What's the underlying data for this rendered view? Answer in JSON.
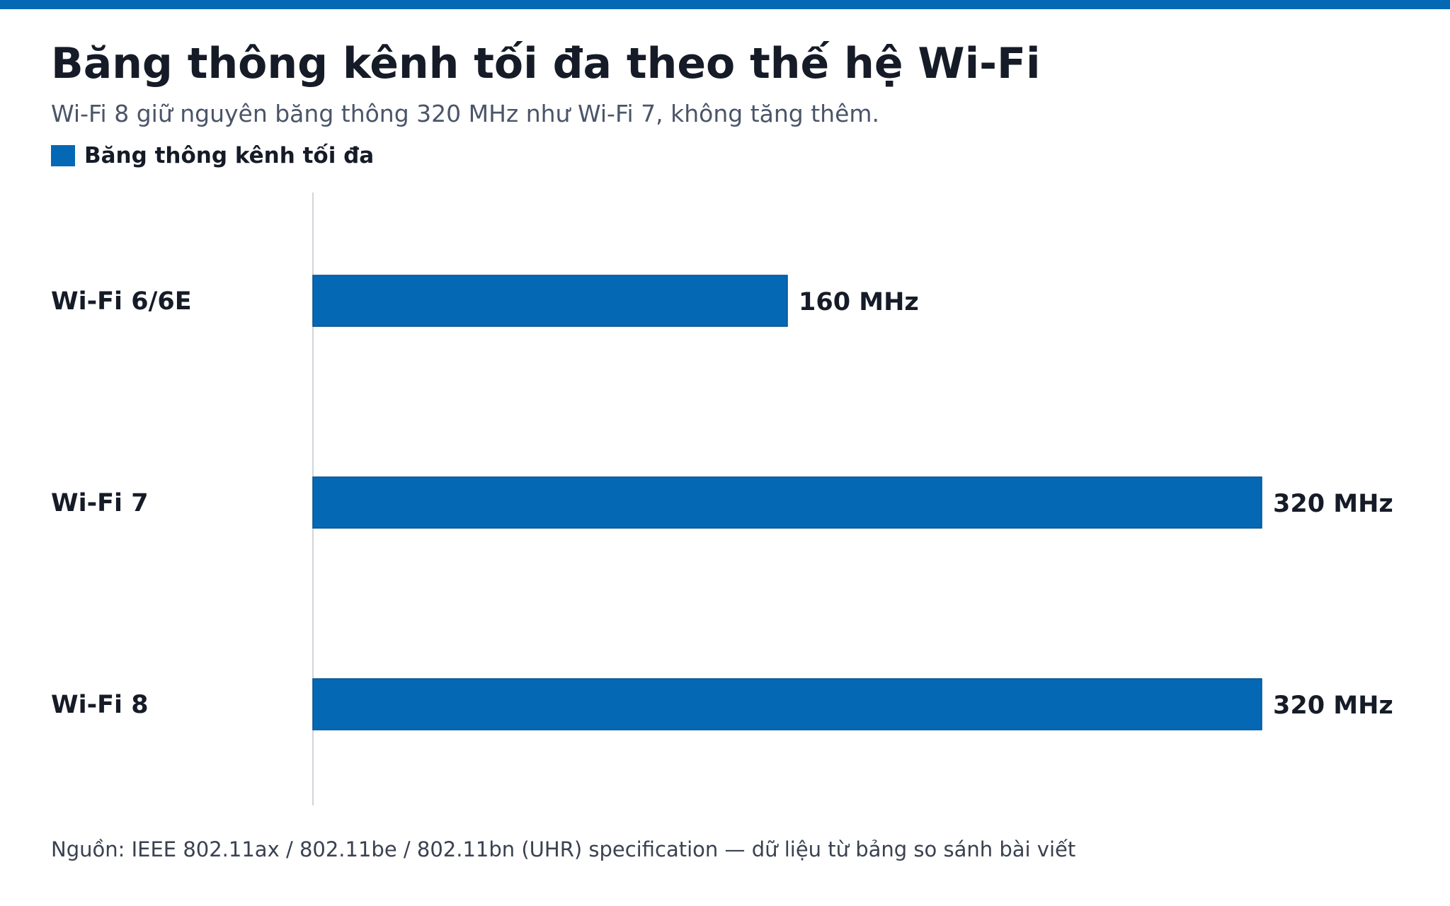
{
  "title": "Băng thông kênh tối đa theo thế hệ Wi-Fi",
  "subtitle": "Wi-Fi 8 giữ nguyên băng thông 320 MHz như Wi-Fi 7, không tăng thêm.",
  "source": "Nguồn: IEEE 802.11ax / 802.11be / 802.11bn (UHR) specification — dữ liệu từ bảng so sánh bài viết",
  "colors": {
    "accent": "#0568b5",
    "bar_stroke": "#04528f",
    "axis": "#d0d4da"
  },
  "chart_data": {
    "type": "bar",
    "orientation": "horizontal",
    "title": "Băng thông kênh tối đa theo thế hệ Wi-Fi",
    "subtitle": "Wi-Fi 8 giữ nguyên băng thông 320 MHz như Wi-Fi 7, không tăng thêm.",
    "categories": [
      "Wi-Fi 6/6E",
      "Wi-Fi 7",
      "Wi-Fi 8"
    ],
    "series": [
      {
        "name": "Băng thông kênh tối đa",
        "values": [
          160,
          320,
          320
        ],
        "labels": [
          "160 MHz",
          "320 MHz",
          "320 MHz"
        ],
        "color": "#0568b5"
      }
    ],
    "xlim": [
      0,
      320
    ],
    "unit": "MHz",
    "grid": false,
    "legend": "top-left"
  }
}
